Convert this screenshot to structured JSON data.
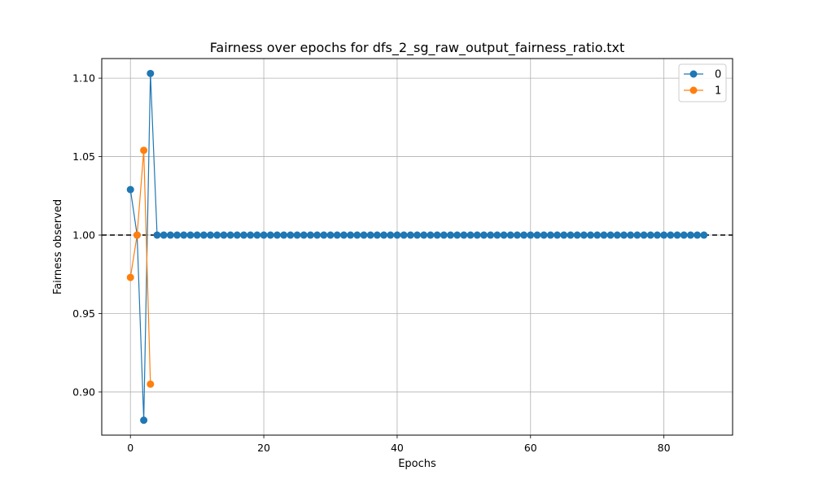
{
  "chart_data": {
    "type": "line",
    "title": "Fairness over epochs for dfs_2_sg_raw_output_fairness_ratio.txt",
    "xlabel": "Epochs",
    "ylabel": "Fairness observed",
    "xlim": [
      -4.3,
      90.3
    ],
    "ylim": [
      0.8725,
      1.1125
    ],
    "x_ticks": [
      0,
      20,
      40,
      60,
      80
    ],
    "x_tick_labels": [
      "0",
      "20",
      "40",
      "60",
      "80"
    ],
    "y_ticks": [
      0.9,
      0.95,
      1.0,
      1.05,
      1.1
    ],
    "y_tick_labels": [
      "0.90",
      "0.95",
      "1.00",
      "1.05",
      "1.10"
    ],
    "grid": true,
    "legend_position": "top-right",
    "reference_line": {
      "y": 1.0,
      "style": "dashed",
      "color": "#000000"
    },
    "series": [
      {
        "name": "0",
        "color": "#1f77b4",
        "x": [
          0,
          1,
          2,
          3,
          4,
          5,
          6,
          7,
          8,
          9,
          10,
          11,
          12,
          13,
          14,
          15,
          16,
          17,
          18,
          19,
          20,
          21,
          22,
          23,
          24,
          25,
          26,
          27,
          28,
          29,
          30,
          31,
          32,
          33,
          34,
          35,
          36,
          37,
          38,
          39,
          40,
          41,
          42,
          43,
          44,
          45,
          46,
          47,
          48,
          49,
          50,
          51,
          52,
          53,
          54,
          55,
          56,
          57,
          58,
          59,
          60,
          61,
          62,
          63,
          64,
          65,
          66,
          67,
          68,
          69,
          70,
          71,
          72,
          73,
          74,
          75,
          76,
          77,
          78,
          79,
          80,
          81,
          82,
          83,
          84,
          85,
          86
        ],
        "y": [
          1.029,
          1.0,
          0.882,
          1.103,
          1.0,
          1.0,
          1.0,
          1.0,
          1.0,
          1.0,
          1.0,
          1.0,
          1.0,
          1.0,
          1.0,
          1.0,
          1.0,
          1.0,
          1.0,
          1.0,
          1.0,
          1.0,
          1.0,
          1.0,
          1.0,
          1.0,
          1.0,
          1.0,
          1.0,
          1.0,
          1.0,
          1.0,
          1.0,
          1.0,
          1.0,
          1.0,
          1.0,
          1.0,
          1.0,
          1.0,
          1.0,
          1.0,
          1.0,
          1.0,
          1.0,
          1.0,
          1.0,
          1.0,
          1.0,
          1.0,
          1.0,
          1.0,
          1.0,
          1.0,
          1.0,
          1.0,
          1.0,
          1.0,
          1.0,
          1.0,
          1.0,
          1.0,
          1.0,
          1.0,
          1.0,
          1.0,
          1.0,
          1.0,
          1.0,
          1.0,
          1.0,
          1.0,
          1.0,
          1.0,
          1.0,
          1.0,
          1.0,
          1.0,
          1.0,
          1.0,
          1.0,
          1.0,
          1.0,
          1.0,
          1.0,
          1.0,
          1.0
        ]
      },
      {
        "name": "1",
        "color": "#ff7f0e",
        "x": [
          0,
          1,
          2,
          3
        ],
        "y": [
          0.973,
          1.0,
          1.054,
          0.905
        ]
      }
    ]
  }
}
